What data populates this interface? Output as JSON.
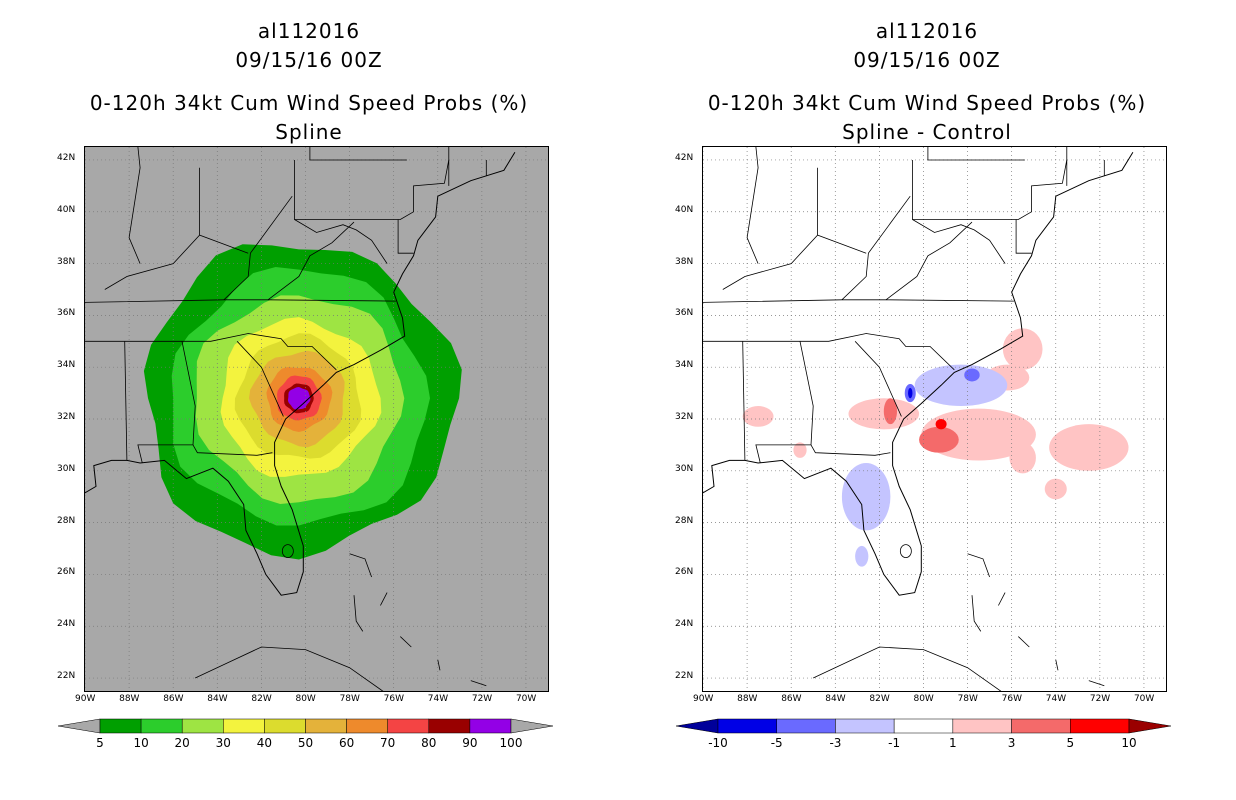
{
  "chart_data": [
    {
      "type": "heatmap",
      "storm_id": "al112016",
      "datetime": "09/15/16 00Z",
      "title": "0-120h 34kt Cum Wind Speed Probs (%)",
      "subtitle": "Spline",
      "lon_ticks": [
        "90W",
        "88W",
        "86W",
        "84W",
        "82W",
        "80W",
        "78W",
        "76W",
        "74W",
        "72W",
        "70W"
      ],
      "lat_ticks": [
        "42N",
        "40N",
        "38N",
        "36N",
        "34N",
        "32N",
        "30N",
        "28N",
        "26N",
        "24N",
        "22N"
      ],
      "xlim": [
        -90,
        -69
      ],
      "ylim": [
        21.5,
        42.5
      ],
      "background_color": "#a8a8a8",
      "center": {
        "lon": -80.3,
        "lat": 32.8
      },
      "contours": [
        {
          "level": 5,
          "color": "#009f00",
          "radius_deg": 6.3
        },
        {
          "level": 10,
          "color": "#2ccd2c",
          "radius_deg": 5.2
        },
        {
          "level": 20,
          "color": "#9ee443",
          "radius_deg": 4.2
        },
        {
          "level": 30,
          "color": "#f3f33e",
          "radius_deg": 3.2
        },
        {
          "level": 40,
          "color": "#dcdc2e",
          "radius_deg": 2.5
        },
        {
          "level": 50,
          "color": "#e4b23a",
          "radius_deg": 1.9
        },
        {
          "level": 60,
          "color": "#ee8a2c",
          "radius_deg": 1.3
        },
        {
          "level": 70,
          "color": "#f44444",
          "radius_deg": 0.9
        },
        {
          "level": 80,
          "color": "#990000",
          "radius_deg": 0.6
        },
        {
          "level": 90,
          "color": "#9300e6",
          "radius_deg": 0.45
        }
      ],
      "colorbar": {
        "labels": [
          "5",
          "10",
          "20",
          "30",
          "40",
          "50",
          "60",
          "70",
          "80",
          "90",
          "100"
        ],
        "colors": [
          "#009f00",
          "#2ccd2c",
          "#9ee443",
          "#f3f33e",
          "#dcdc2e",
          "#e4b23a",
          "#ee8a2c",
          "#f44444",
          "#990000",
          "#9300e6"
        ],
        "end_color": "#a8a8a8"
      }
    },
    {
      "type": "heatmap",
      "storm_id": "al112016",
      "datetime": "09/15/16 00Z",
      "title": "0-120h 34kt Cum Wind Speed Probs (%)",
      "subtitle": "Spline - Control",
      "lon_ticks": [
        "90W",
        "88W",
        "86W",
        "84W",
        "82W",
        "80W",
        "78W",
        "76W",
        "74W",
        "72W",
        "70W"
      ],
      "lat_ticks": [
        "42N",
        "40N",
        "38N",
        "36N",
        "34N",
        "32N",
        "30N",
        "28N",
        "26N",
        "24N",
        "22N"
      ],
      "xlim": [
        -90,
        -69
      ],
      "ylim": [
        21.5,
        42.5
      ],
      "background_color": "#ffffff",
      "regions": [
        {
          "level": "1 to 3",
          "color": "#ffc4c4",
          "lon": -81.8,
          "lat": 32.2,
          "rx": 1.6,
          "ry": 0.6
        },
        {
          "level": "1 to 3",
          "color": "#ffc4c4",
          "lon": -77.5,
          "lat": 31.4,
          "rx": 2.6,
          "ry": 1.0
        },
        {
          "level": "1 to 3",
          "color": "#ffc4c4",
          "lon": -75.5,
          "lat": 34.7,
          "rx": 0.9,
          "ry": 0.8
        },
        {
          "level": "1 to 3",
          "color": "#ffc4c4",
          "lon": -76.2,
          "lat": 33.6,
          "rx": 1.0,
          "ry": 0.5
        },
        {
          "level": "1 to 3",
          "color": "#ffc4c4",
          "lon": -72.5,
          "lat": 30.9,
          "rx": 1.8,
          "ry": 0.9
        },
        {
          "level": "1 to 3",
          "color": "#ffc4c4",
          "lon": -75.5,
          "lat": 30.5,
          "rx": 0.6,
          "ry": 0.6
        },
        {
          "level": "1 to 3",
          "color": "#ffc4c4",
          "lon": -74.0,
          "lat": 29.3,
          "rx": 0.5,
          "ry": 0.4
        },
        {
          "level": "1 to 3",
          "color": "#ffc4c4",
          "lon": -87.5,
          "lat": 32.1,
          "rx": 0.7,
          "ry": 0.4
        },
        {
          "level": "1 to 3",
          "color": "#ffc4c4",
          "lon": -85.6,
          "lat": 30.8,
          "rx": 0.3,
          "ry": 0.3
        },
        {
          "level": "3 to 5",
          "color": "#f46a6a",
          "lon": -79.3,
          "lat": 31.2,
          "rx": 0.9,
          "ry": 0.5
        },
        {
          "level": "3 to 5",
          "color": "#f46a6a",
          "lon": -81.5,
          "lat": 32.3,
          "rx": 0.3,
          "ry": 0.5
        },
        {
          "level": "5 to 10",
          "color": "#ff0000",
          "lon": -79.2,
          "lat": 31.8,
          "rx": 0.25,
          "ry": 0.2
        },
        {
          "level": "-3 to -1",
          "color": "#c4c4ff",
          "lon": -78.3,
          "lat": 33.3,
          "rx": 2.1,
          "ry": 0.8
        },
        {
          "level": "-3 to -1",
          "color": "#c4c4ff",
          "lon": -82.6,
          "lat": 29.0,
          "rx": 1.1,
          "ry": 1.3
        },
        {
          "level": "-3 to -1",
          "color": "#c4c4ff",
          "lon": -82.8,
          "lat": 26.7,
          "rx": 0.3,
          "ry": 0.4
        },
        {
          "level": "-5 to -3",
          "color": "#6a6aff",
          "lon": -80.6,
          "lat": 33.0,
          "rx": 0.25,
          "ry": 0.35
        },
        {
          "level": "-5 to -3",
          "color": "#6a6aff",
          "lon": -77.8,
          "lat": 33.7,
          "rx": 0.35,
          "ry": 0.25
        },
        {
          "level": "-10 to -5",
          "color": "#0000e6",
          "lon": -80.6,
          "lat": 33.0,
          "rx": 0.1,
          "ry": 0.2
        }
      ],
      "colorbar": {
        "labels": [
          "-10",
          "-5",
          "-3",
          "-1",
          "1",
          "3",
          "5",
          "10"
        ],
        "colors": [
          "#0000e6",
          "#6a6aff",
          "#c4c4ff",
          "#ffffff",
          "#ffc4c4",
          "#f46a6a",
          "#ff0000"
        ],
        "low_end_color": "#00009a",
        "high_end_color": "#9a0000"
      }
    }
  ]
}
